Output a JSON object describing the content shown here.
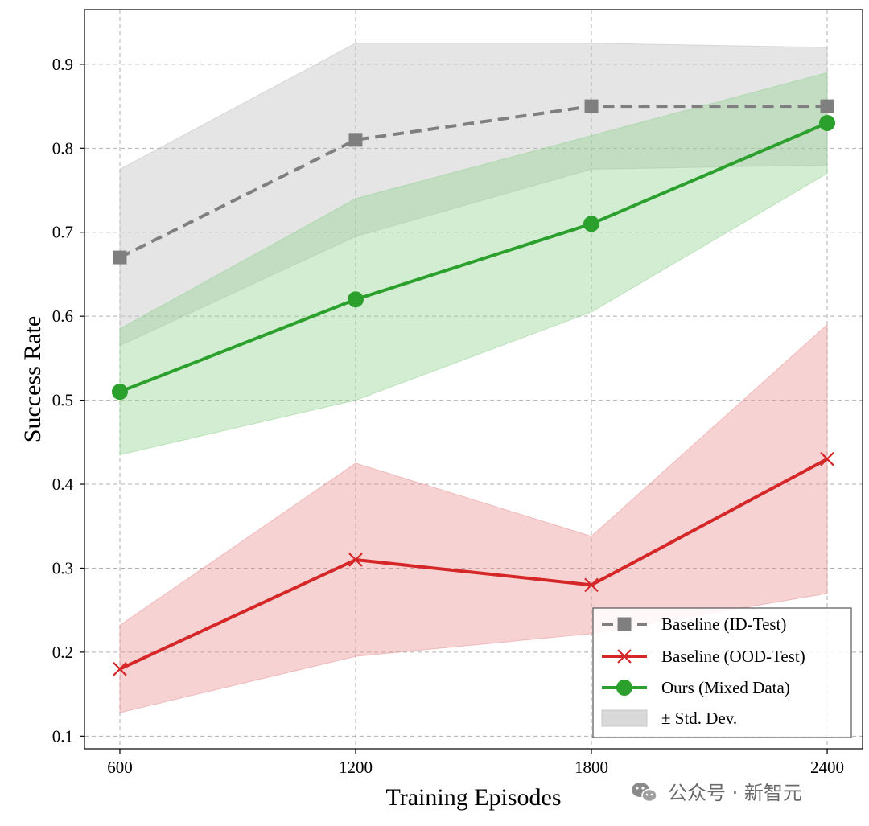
{
  "chart_data": {
    "type": "line",
    "title": "",
    "xlabel": "Training Episodes",
    "ylabel": "Success Rate",
    "x": [
      600,
      1200,
      1800,
      2400
    ],
    "x_tick_labels": [
      "600",
      "1200",
      "1800",
      "2400"
    ],
    "y_tick_labels": [
      "0.1",
      "0.2",
      "0.3",
      "0.4",
      "0.5",
      "0.6",
      "0.7",
      "0.8",
      "0.9"
    ],
    "xlim": [
      510,
      2490
    ],
    "ylim": [
      0.085,
      0.965
    ],
    "grid": true,
    "legend_position": "lower-right",
    "series": [
      {
        "name": "Baseline (ID-Test)",
        "values": [
          0.67,
          0.81,
          0.85,
          0.85
        ],
        "lower": [
          0.565,
          0.695,
          0.775,
          0.78
        ],
        "upper": [
          0.775,
          0.925,
          0.925,
          0.92
        ],
        "color": "#7f7f7f",
        "band_color": "#bdbdbd",
        "marker": "square",
        "line_style": "dashed"
      },
      {
        "name": "Baseline (OOD-Test)",
        "values": [
          0.18,
          0.31,
          0.28,
          0.43
        ],
        "lower": [
          0.128,
          0.195,
          0.222,
          0.27
        ],
        "upper": [
          0.232,
          0.425,
          0.338,
          0.59
        ],
        "color": "#d62728",
        "band_color": "#e98f91",
        "marker": "x",
        "line_style": "solid"
      },
      {
        "name": "Ours (Mixed Data)",
        "values": [
          0.51,
          0.62,
          0.71,
          0.83
        ],
        "lower": [
          0.435,
          0.5,
          0.605,
          0.77
        ],
        "upper": [
          0.585,
          0.74,
          0.815,
          0.89
        ],
        "color": "#2ca02c",
        "band_color": "#8fd28f",
        "marker": "circle",
        "line_style": "solid"
      }
    ],
    "band_legend_label": "± Std. Dev.",
    "band_legend_color": "#d9d9d9"
  },
  "watermark": {
    "text": "公众号 · 新智元",
    "icon": "wechat-icon"
  }
}
